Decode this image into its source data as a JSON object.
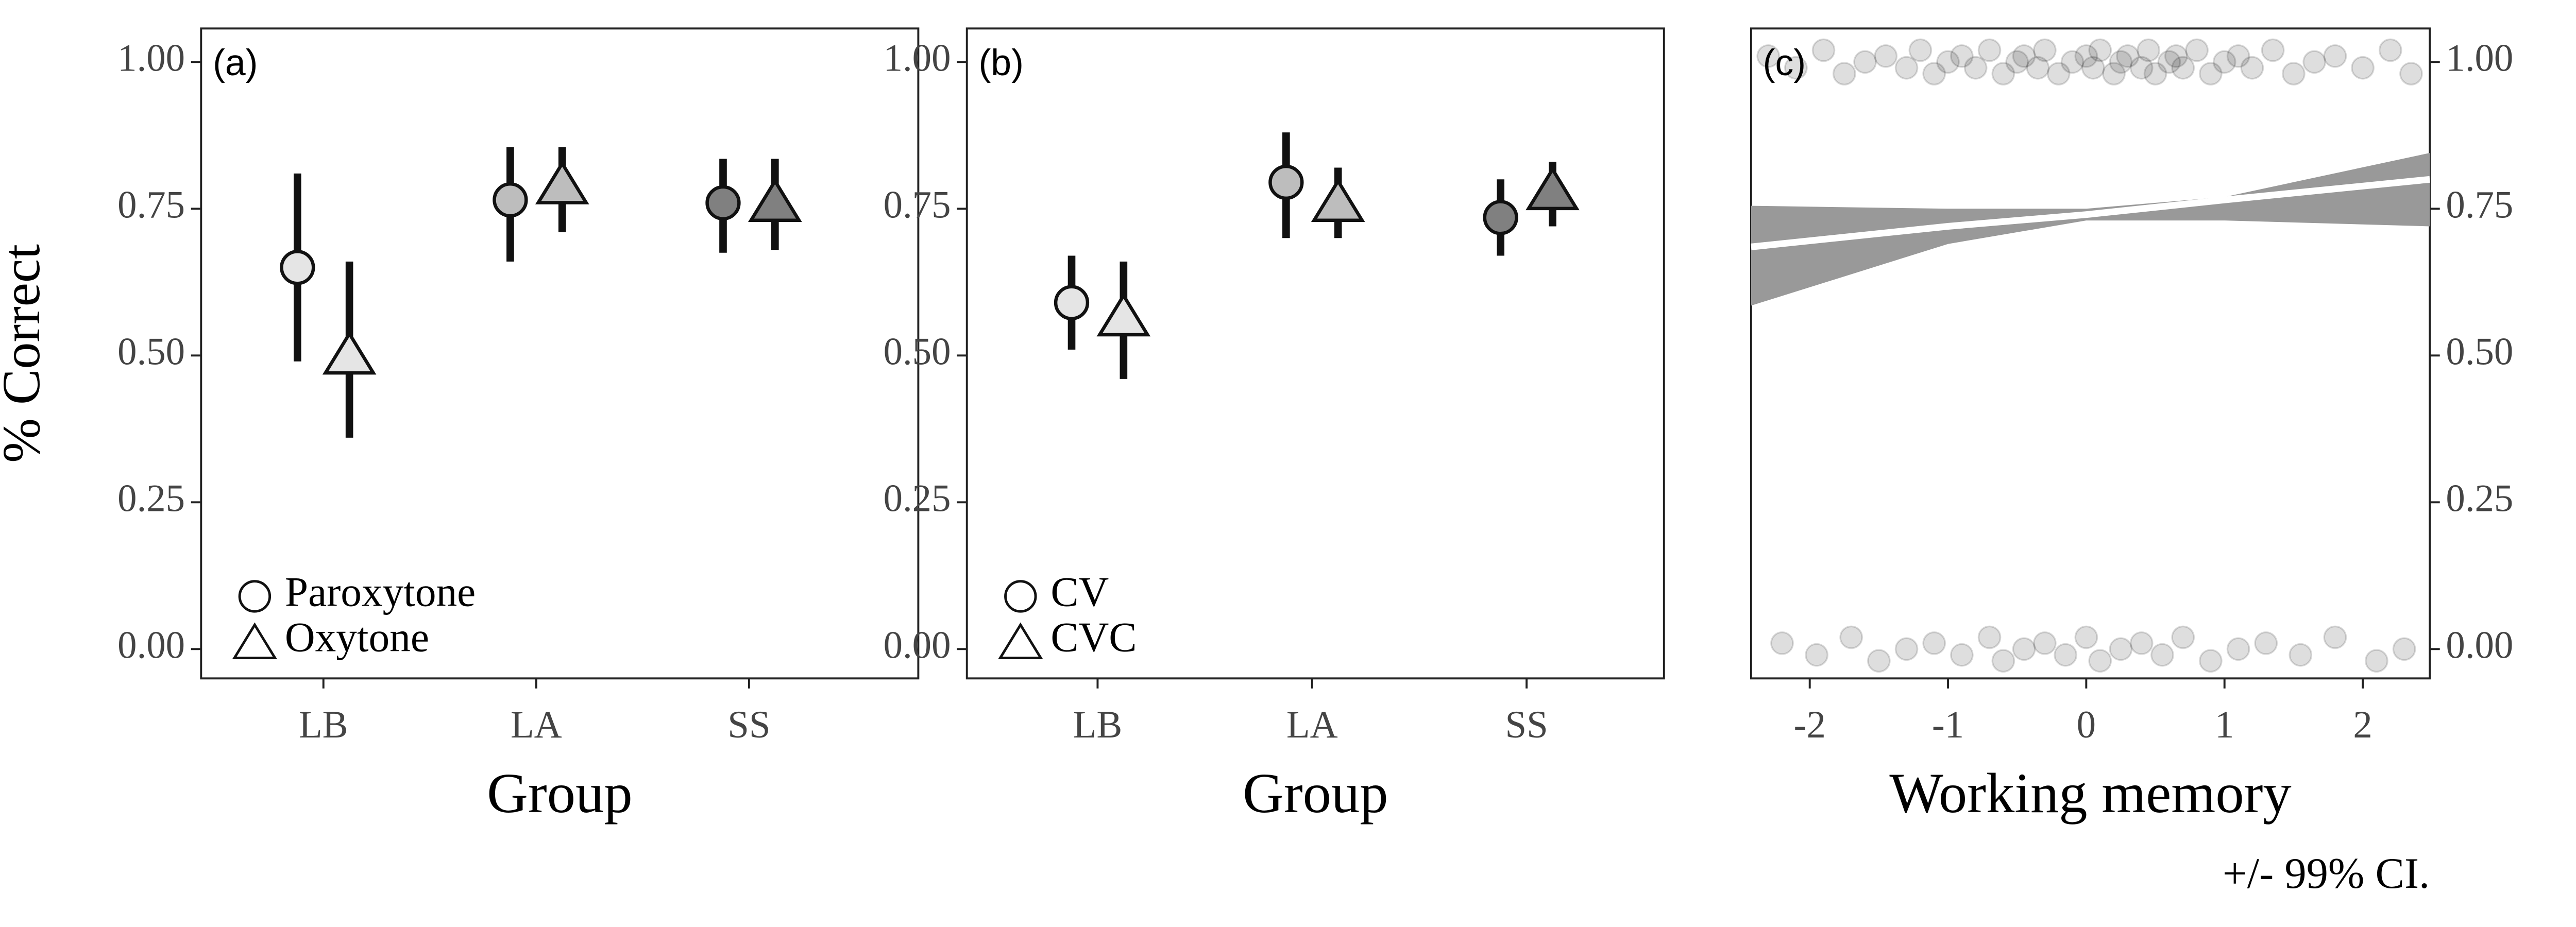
{
  "chart_data": [
    {
      "type": "pointrange",
      "panel_label": "(a)",
      "xlabel": "Group",
      "ylabel": "% Correct",
      "y_axis_position": "left",
      "categories": [
        "LB",
        "LA",
        "SS"
      ],
      "colors": [
        "#e5e5e5",
        "#bdbdbd",
        "#808080"
      ],
      "series": [
        {
          "name": "Paroxytone",
          "shape": "circle",
          "values": [
            0.65,
            0.765,
            0.76
          ],
          "lower": [
            0.49,
            0.66,
            0.675
          ],
          "upper": [
            0.81,
            0.855,
            0.835
          ]
        },
        {
          "name": "Oxytone",
          "shape": "triangle",
          "values": [
            0.5,
            0.79,
            0.76
          ],
          "lower": [
            0.36,
            0.71,
            0.68
          ],
          "upper": [
            0.66,
            0.855,
            0.835
          ]
        }
      ],
      "ylim": [
        -0.05,
        1.057
      ],
      "yticks": [
        {
          "value": 0,
          "label": "0.00"
        },
        {
          "value": 0.25,
          "label": "0.25"
        },
        {
          "value": 0.5,
          "label": "0.50"
        },
        {
          "value": 0.75,
          "label": "0.75"
        },
        {
          "value": 1,
          "label": "1.00"
        }
      ]
    },
    {
      "type": "pointrange",
      "panel_label": "(b)",
      "xlabel": "Group",
      "y_axis_position": "left",
      "categories": [
        "LB",
        "LA",
        "SS"
      ],
      "colors": [
        "#e5e5e5",
        "#bdbdbd",
        "#808080"
      ],
      "series": [
        {
          "name": "CV",
          "shape": "circle",
          "values": [
            0.59,
            0.795,
            0.735
          ],
          "lower": [
            0.51,
            0.7,
            0.67
          ],
          "upper": [
            0.67,
            0.88,
            0.8
          ]
        },
        {
          "name": "CVC",
          "shape": "triangle",
          "values": [
            0.565,
            0.76,
            0.78
          ],
          "lower": [
            0.46,
            0.7,
            0.72
          ],
          "upper": [
            0.66,
            0.82,
            0.83
          ]
        }
      ],
      "ylim": [
        -0.05,
        1.057
      ],
      "yticks": [
        {
          "value": 0,
          "label": "0.00"
        },
        {
          "value": 0.25,
          "label": "0.25"
        },
        {
          "value": 0.5,
          "label": "0.50"
        },
        {
          "value": 0.75,
          "label": "0.75"
        },
        {
          "value": 1,
          "label": "1.00"
        }
      ]
    },
    {
      "type": "logistic",
      "panel_label": "(c)",
      "xlabel": "Working memory",
      "ylabel": "% Correct",
      "caption": "+/- 99% CI.",
      "y_axis_position": "right",
      "xlim": [
        -2.424,
        2.485
      ],
      "xticks": [
        -2,
        -1,
        0,
        1,
        2
      ],
      "ylim": [
        -0.05,
        1.057
      ],
      "yticks": [
        {
          "value": 0,
          "label": "0.00"
        },
        {
          "value": 0.25,
          "label": "0.25"
        },
        {
          "value": 0.5,
          "label": "0.50"
        },
        {
          "value": 0.75,
          "label": "0.75"
        },
        {
          "value": 1,
          "label": "1.00"
        }
      ],
      "band_color": "#999999",
      "line_color": "#ffffff",
      "point_color": "#000000",
      "fit": {
        "x": [
          -2.424,
          -1,
          0,
          1,
          2.485
        ],
        "values": [
          0.685,
          0.72,
          0.74,
          0.765,
          0.8
        ],
        "lower": [
          0.585,
          0.69,
          0.73,
          0.73,
          0.72
        ],
        "upper": [
          0.755,
          0.75,
          0.75,
          0.77,
          0.845
        ]
      },
      "points": {
        "x": [
          -2.3,
          -2.1,
          -1.9,
          -1.75,
          -1.6,
          -1.45,
          -1.3,
          -1.2,
          -1.1,
          -1.0,
          -0.9,
          -0.8,
          -0.7,
          -0.6,
          -0.5,
          -0.45,
          -0.35,
          -0.3,
          -0.2,
          -0.1,
          0,
          0.05,
          0.1,
          0.2,
          0.25,
          0.3,
          0.4,
          0.45,
          0.5,
          0.6,
          0.65,
          0.7,
          0.8,
          0.9,
          1.0,
          1.1,
          1.2,
          1.35,
          1.5,
          1.65,
          1.8,
          2.0,
          2.2,
          2.35,
          -2.2,
          -1.95,
          -1.7,
          -1.5,
          -1.3,
          -1.1,
          -0.9,
          -0.7,
          -0.6,
          -0.45,
          -0.3,
          -0.15,
          0,
          0.1,
          0.25,
          0.4,
          0.55,
          0.7,
          0.9,
          1.1,
          1.3,
          1.55,
          1.8,
          2.1,
          2.3
        ],
        "y": [
          1.01,
          0.99,
          1.02,
          0.98,
          1.0,
          1.01,
          0.99,
          1.02,
          0.98,
          1.0,
          1.01,
          0.99,
          1.02,
          0.98,
          1.0,
          1.01,
          0.99,
          1.02,
          0.98,
          1.0,
          1.01,
          0.99,
          1.02,
          0.98,
          1.0,
          1.01,
          0.99,
          1.02,
          0.98,
          1.0,
          1.01,
          0.99,
          1.02,
          0.98,
          1.0,
          1.01,
          0.99,
          1.02,
          0.98,
          1.0,
          1.01,
          0.99,
          1.02,
          0.98,
          0.01,
          -0.01,
          0.02,
          -0.02,
          0,
          0.01,
          -0.01,
          0.02,
          -0.02,
          0,
          0.01,
          -0.01,
          0.02,
          -0.02,
          0,
          0.01,
          -0.01,
          0.02,
          -0.02,
          0,
          0.01,
          -0.01,
          0.02,
          -0.02,
          0
        ]
      }
    }
  ]
}
